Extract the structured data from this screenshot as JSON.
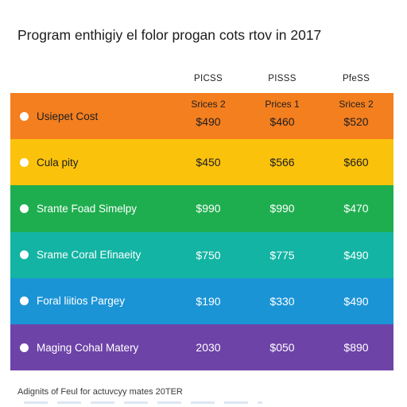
{
  "title": "Program enthigiy el folor progan cots rtov in 2017",
  "column_headers": [
    "PICSS",
    "PISSS",
    "PfeSS"
  ],
  "footer": "Adignits of Feul for actuvcyy mates 20TER",
  "chart_data": {
    "type": "table",
    "title": "Program enthigiy el folor progan cots rtov in 2017",
    "columns": [
      "PICSS",
      "PISSS",
      "PfeSS"
    ],
    "rows": [
      {
        "label": "Usiepet Cost",
        "color": "#f47f1f",
        "text_color": "#1d1d1f",
        "sublabels": [
          "Srices 2",
          "Prices 1",
          "Srices 2"
        ],
        "values": [
          "$490",
          "$460",
          "$520"
        ]
      },
      {
        "label": "Cula pity",
        "color": "#fbc20c",
        "text_color": "#1d1d1f",
        "values": [
          "$450",
          "$566",
          "$660"
        ]
      },
      {
        "label": "Srante Foad Simelpy",
        "color": "#1fae4f",
        "text_color": "#ffffff",
        "values": [
          "$990",
          "$990",
          "$470"
        ]
      },
      {
        "label": "Srame Coral Efinaeity",
        "color": "#13b4a3",
        "text_color": "#ffffff",
        "values": [
          "$750",
          "$775",
          "$490"
        ]
      },
      {
        "label": "Foral liitios Pargey",
        "color": "#1b94d6",
        "text_color": "#ffffff",
        "values": [
          "$190",
          "$330",
          "$490"
        ]
      },
      {
        "label": "Maging Cohal Matery",
        "color": "#6e43a8",
        "text_color": "#ffffff",
        "values": [
          "2030",
          "$050",
          "$890"
        ]
      }
    ]
  }
}
